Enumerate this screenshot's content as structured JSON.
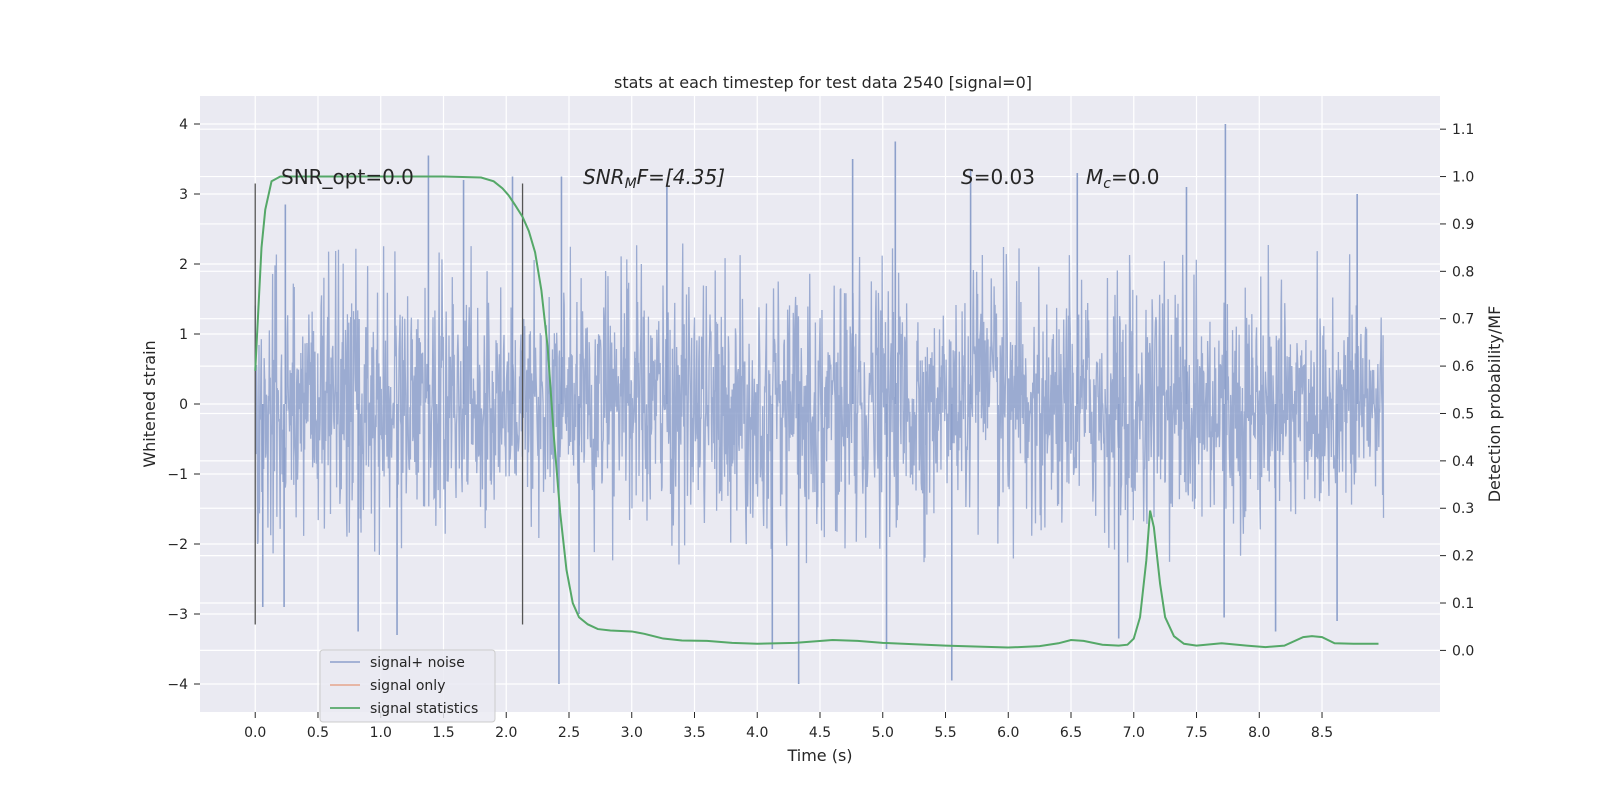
{
  "chart_data": {
    "type": "line",
    "title": "stats at each timestep for test data 2540 [signal=0]",
    "xlabel": "Time (s)",
    "ylabel": "Whitened strain",
    "ylabel_right": "Detection probability/MF",
    "xlim": [
      -0.44,
      9.44
    ],
    "ylim": [
      -4.4,
      4.4
    ],
    "ylim_right": [
      -0.13,
      1.17
    ],
    "x_ticks": [
      "0.0",
      "0.5",
      "1.0",
      "1.5",
      "2.0",
      "2.5",
      "3.0",
      "3.5",
      "4.0",
      "4.5",
      "5.0",
      "5.5",
      "6.0",
      "6.5",
      "7.0",
      "7.5",
      "8.0",
      "8.5"
    ],
    "y_ticks": [
      "4",
      "3",
      "2",
      "1",
      "0",
      "−1",
      "−2",
      "−3",
      "−4"
    ],
    "y_right_ticks": [
      "1.1",
      "1.0",
      "0.9",
      "0.8",
      "0.7",
      "0.6",
      "0.5",
      "0.4",
      "0.3",
      "0.2",
      "0.1",
      "0.0"
    ],
    "grid": true,
    "legend_position": "lower-left",
    "annotations": {
      "snr_opt": "SNR_opt=0.0",
      "snr_mf_main": "SNR",
      "snr_mf_sub": "M",
      "snr_mf_rest": "F=[4.35]",
      "s_var": "S",
      "s_val": "=0.03",
      "mc_var": "M",
      "mc_sub": "c",
      "mc_val": "=0.0"
    },
    "vlines": [
      0.0,
      2.13
    ],
    "series": [
      {
        "name": "signal+ noise",
        "color": "#8da0cb",
        "axis": "left",
        "x_range": [
          0.0,
          8.99
        ],
        "typical_abs_max": 2.3,
        "peaks": [
          {
            "x": 0.06,
            "y": -2.9
          },
          {
            "x": 0.23,
            "y": -2.9
          },
          {
            "x": 0.24,
            "y": 2.85
          },
          {
            "x": 0.82,
            "y": -3.25
          },
          {
            "x": 1.13,
            "y": -3.3
          },
          {
            "x": 1.38,
            "y": 3.55
          },
          {
            "x": 1.66,
            "y": 3.2
          },
          {
            "x": 2.05,
            "y": 3.25
          },
          {
            "x": 2.42,
            "y": -4.0
          },
          {
            "x": 2.44,
            "y": 3.25
          },
          {
            "x": 2.58,
            "y": -3.0
          },
          {
            "x": 3.28,
            "y": 3.1
          },
          {
            "x": 4.12,
            "y": -3.5
          },
          {
            "x": 4.33,
            "y": -4.0
          },
          {
            "x": 4.76,
            "y": 3.5
          },
          {
            "x": 5.03,
            "y": -3.5
          },
          {
            "x": 5.1,
            "y": 3.75
          },
          {
            "x": 5.55,
            "y": -3.95
          },
          {
            "x": 5.7,
            "y": 3.35
          },
          {
            "x": 6.55,
            "y": 3.3
          },
          {
            "x": 6.88,
            "y": -3.35
          },
          {
            "x": 7.42,
            "y": 3.1
          },
          {
            "x": 7.73,
            "y": 4.0
          },
          {
            "x": 7.72,
            "y": -3.05
          },
          {
            "x": 8.13,
            "y": -3.25
          },
          {
            "x": 8.62,
            "y": -3.1
          },
          {
            "x": 8.78,
            "y": 3.0
          }
        ]
      },
      {
        "name": "signal only",
        "color": "#e5a58b",
        "axis": "left",
        "x": [],
        "y": []
      },
      {
        "name": "signal statistics",
        "color": "#55a868",
        "axis": "right",
        "x": [
          0.0,
          0.05,
          0.08,
          0.13,
          0.2,
          0.4,
          0.6,
          0.9,
          1.2,
          1.5,
          1.8,
          1.9,
          1.97,
          2.02,
          2.07,
          2.13,
          2.18,
          2.23,
          2.28,
          2.33,
          2.38,
          2.43,
          2.48,
          2.53,
          2.58,
          2.65,
          2.73,
          2.83,
          3.0,
          3.1,
          3.25,
          3.4,
          3.6,
          3.8,
          4.0,
          4.3,
          4.6,
          4.8,
          5.0,
          5.5,
          6.0,
          6.25,
          6.4,
          6.5,
          6.6,
          6.75,
          6.88,
          6.95,
          7.0,
          7.05,
          7.1,
          7.13,
          7.16,
          7.21,
          7.25,
          7.32,
          7.4,
          7.5,
          7.7,
          7.9,
          8.05,
          8.2,
          8.35,
          8.42,
          8.5,
          8.6,
          8.75,
          8.95
        ],
        "y": [
          0.59,
          0.85,
          0.93,
          0.99,
          1.0,
          1.0,
          1.0,
          1.0,
          1.0,
          1.0,
          0.998,
          0.99,
          0.975,
          0.96,
          0.94,
          0.915,
          0.885,
          0.84,
          0.76,
          0.64,
          0.45,
          0.29,
          0.17,
          0.1,
          0.07,
          0.055,
          0.045,
          0.042,
          0.04,
          0.035,
          0.025,
          0.021,
          0.02,
          0.016,
          0.014,
          0.016,
          0.022,
          0.02,
          0.016,
          0.01,
          0.006,
          0.009,
          0.015,
          0.022,
          0.02,
          0.012,
          0.01,
          0.012,
          0.025,
          0.07,
          0.19,
          0.295,
          0.26,
          0.14,
          0.07,
          0.03,
          0.014,
          0.01,
          0.015,
          0.01,
          0.007,
          0.01,
          0.028,
          0.03,
          0.028,
          0.015,
          0.014,
          0.014
        ]
      }
    ]
  }
}
